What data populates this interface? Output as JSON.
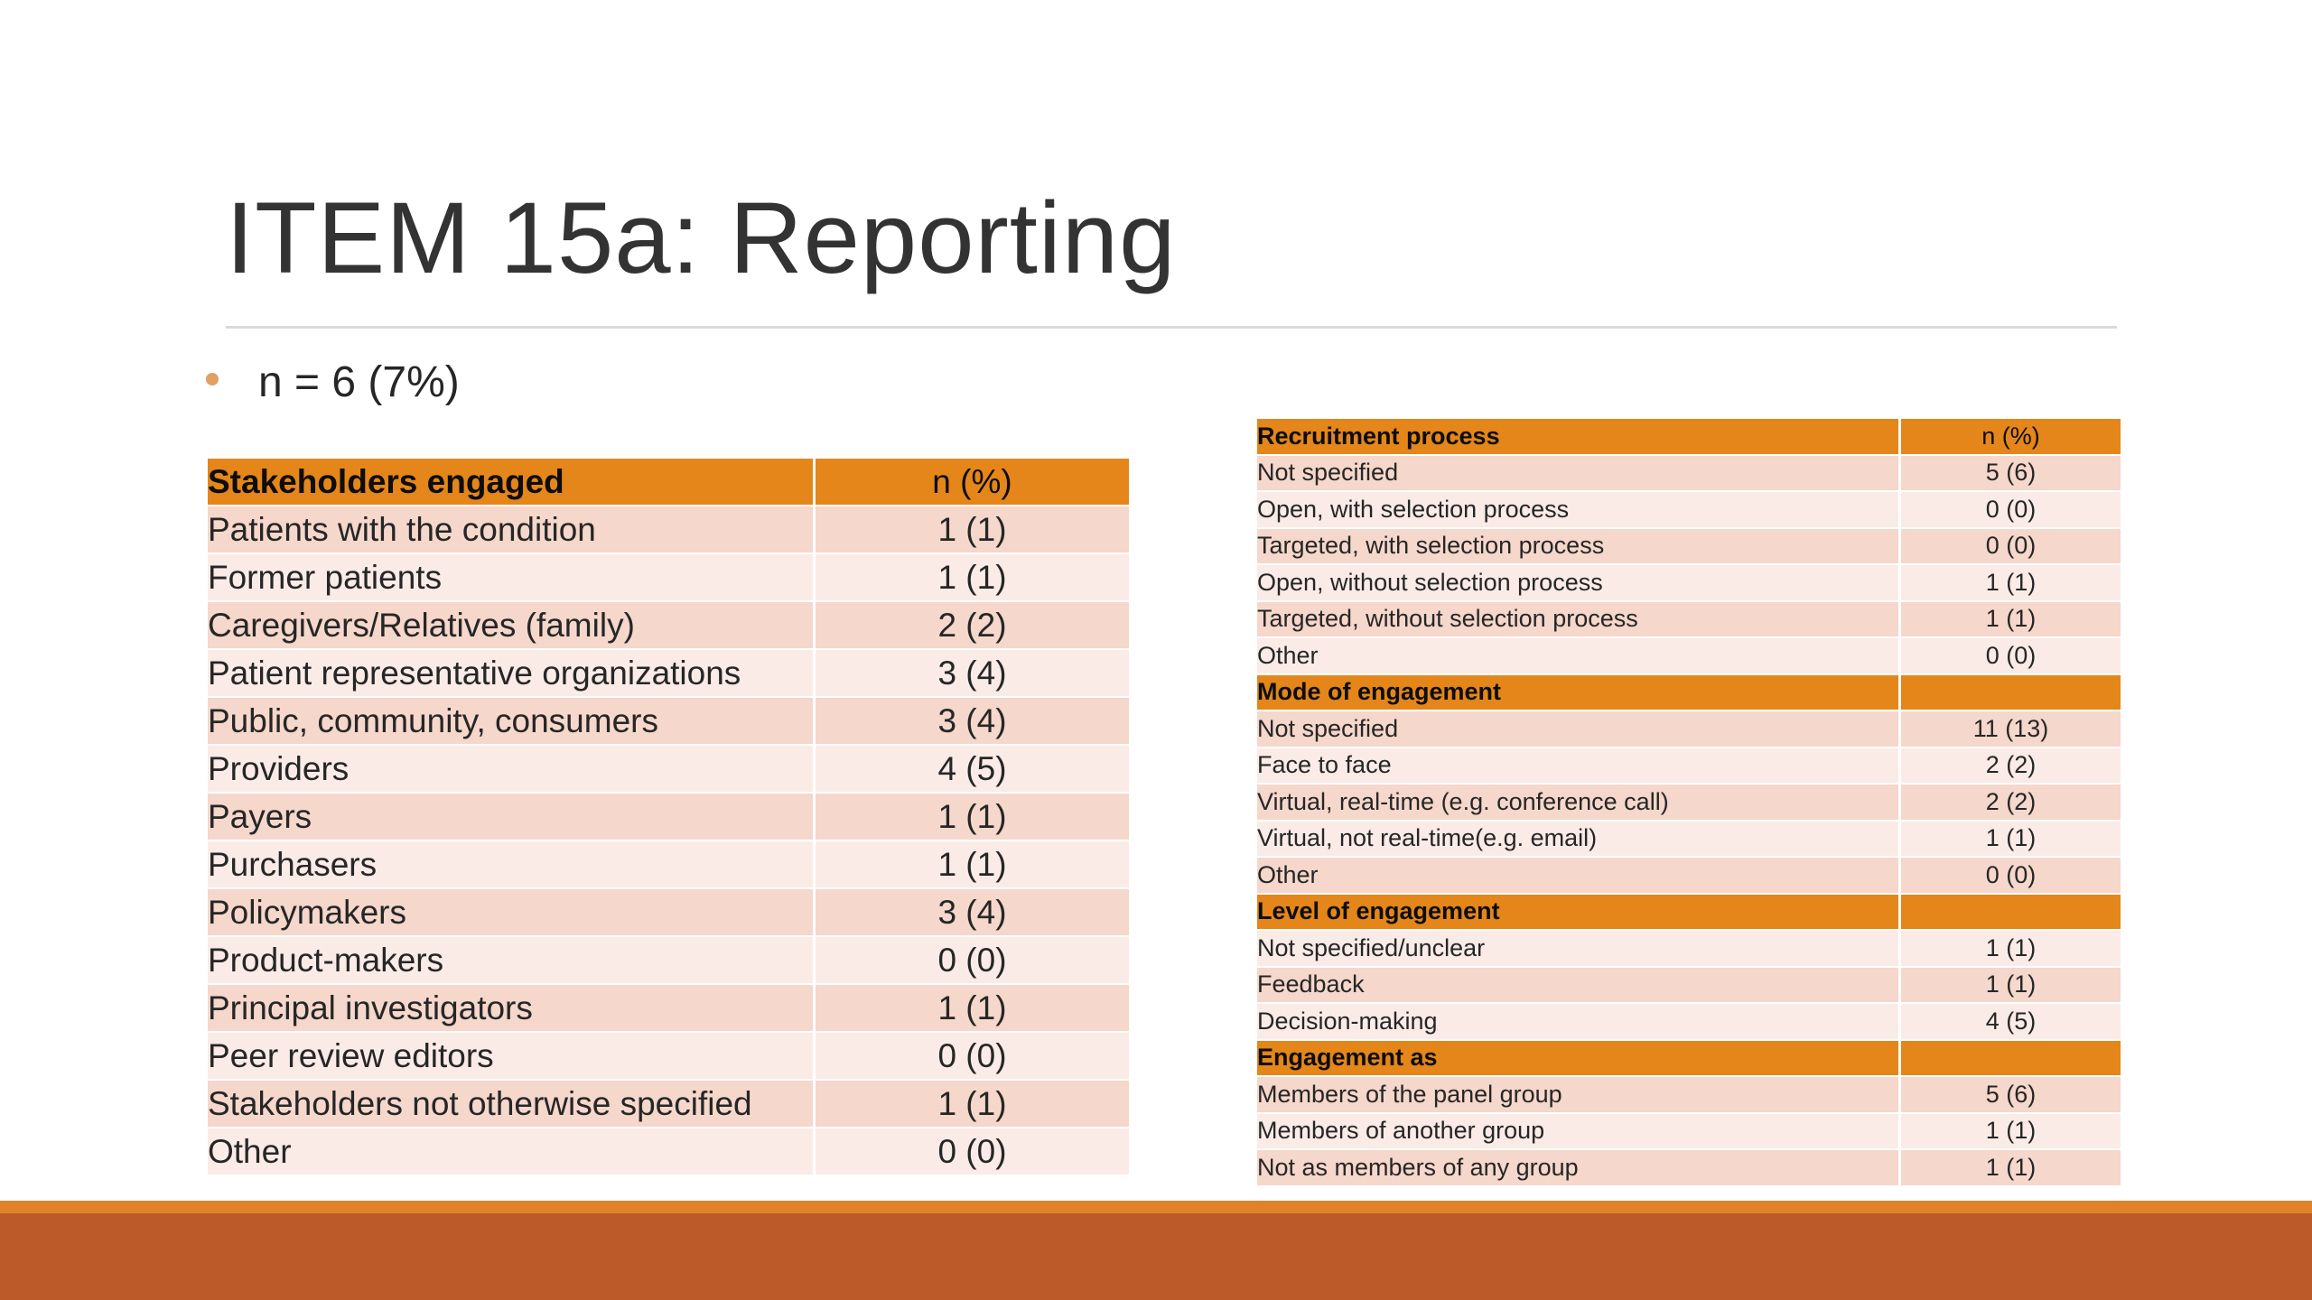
{
  "title": "ITEM 15a: Reporting",
  "bullet": "n = 6 (7%)",
  "left_table": {
    "header": {
      "label": "Stakeholders engaged",
      "value": "n (%)"
    },
    "rows": [
      {
        "label": "Patients with the condition",
        "value": "1 (1)"
      },
      {
        "label": "Former patients",
        "value": "1 (1)"
      },
      {
        "label": "Caregivers/Relatives (family)",
        "value": "2 (2)"
      },
      {
        "label": "Patient representative organizations",
        "value": "3 (4)"
      },
      {
        "label": "Public, community, consumers",
        "value": "3 (4)"
      },
      {
        "label": "Providers",
        "value": "4 (5)"
      },
      {
        "label": "Payers",
        "value": "1 (1)"
      },
      {
        "label": "Purchasers",
        "value": "1 (1)"
      },
      {
        "label": "Policymakers",
        "value": "3 (4)"
      },
      {
        "label": "Product-makers",
        "value": "0 (0)"
      },
      {
        "label": "Principal investigators",
        "value": "1 (1)"
      },
      {
        "label": "Peer review editors",
        "value": "0 (0)"
      },
      {
        "label": "Stakeholders not otherwise specified",
        "value": "1 (1)"
      },
      {
        "label": "Other",
        "value": "0 (0)"
      }
    ]
  },
  "right_table": {
    "sections": [
      {
        "label": "Recruitment process",
        "value": "n (%)",
        "rows": [
          {
            "label": "Not specified",
            "value": "5 (6)"
          },
          {
            "label": "Open, with selection process",
            "value": "0 (0)"
          },
          {
            "label": "Targeted, with selection process",
            "value": "0 (0)"
          },
          {
            "label": "Open, without selection process",
            "value": "1 (1)"
          },
          {
            "label": "Targeted, without selection process",
            "value": "1 (1)"
          },
          {
            "label": "Other",
            "value": "0 (0)"
          }
        ]
      },
      {
        "label": "Mode of engagement",
        "value": "",
        "rows": [
          {
            "label": "Not specified",
            "value": "11 (13)"
          },
          {
            "label": "Face to face",
            "value": "2 (2)"
          },
          {
            "label": "Virtual, real-time (e.g. conference call)",
            "value": "2 (2)"
          },
          {
            "label": "Virtual, not real-time(e.g. email)",
            "value": "1 (1)"
          },
          {
            "label": "Other",
            "value": "0 (0)"
          }
        ]
      },
      {
        "label": "Level of engagement",
        "value": "",
        "rows": [
          {
            "label": "Not specified/unclear",
            "value": "1 (1)"
          },
          {
            "label": "Feedback",
            "value": "1 (1)"
          },
          {
            "label": "Decision-making",
            "value": "4 (5)"
          }
        ]
      },
      {
        "label": "Engagement as",
        "value": "",
        "rows": [
          {
            "label": "Members of the panel group",
            "value": "5 (6)"
          },
          {
            "label": "Members of another group",
            "value": "1 (1)"
          },
          {
            "label": "Not as members of any group",
            "value": "1 (1)"
          }
        ]
      }
    ]
  },
  "colors": {
    "header": "#e48619",
    "row_dark": "#f5d7cb",
    "row_light": "#fbebe6",
    "bullet": "#e0a163",
    "footer_thin": "#e0822a",
    "footer_bar": "#bc5a2a"
  }
}
